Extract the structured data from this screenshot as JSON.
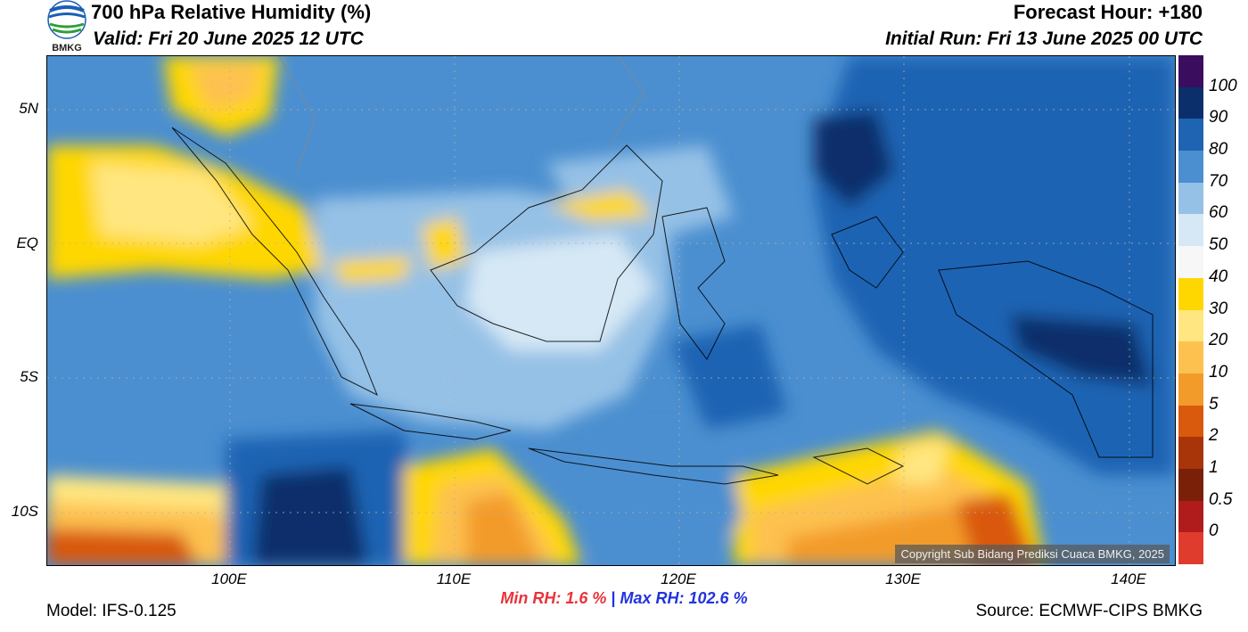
{
  "header": {
    "title": "700 hPa Relative Humidity (%)",
    "valid": "Valid: Fri 20 June 2025 12 UTC",
    "forecast_hour": "Forecast Hour: +180",
    "initial_run": "Initial Run: Fri 13 June 2025 00 UTC",
    "logo_text": "BMKG"
  },
  "map": {
    "lat_labels": [
      "5N",
      "EQ",
      "5S",
      "10S"
    ],
    "lon_labels": [
      "100E",
      "110E",
      "120E",
      "130E",
      "140E"
    ],
    "copyright": "Copyright Sub Bidang Prediksi Cuaca BMKG, 2025"
  },
  "colorbar": {
    "labels": [
      "100",
      "90",
      "80",
      "70",
      "60",
      "50",
      "40",
      "30",
      "20",
      "10",
      "5",
      "2",
      "1",
      "0.5",
      "0"
    ],
    "colors": [
      "#3a0d5e",
      "#0b2f6b",
      "#1f63b3",
      "#4b8fd0",
      "#95c1e6",
      "#d6e8f5",
      "#f7f7f7",
      "#ffd700",
      "#ffe680",
      "#fdc14f",
      "#f39b2a",
      "#d9590d",
      "#a8350a",
      "#7a1f08",
      "#b01c1c",
      "#e03c2e"
    ]
  },
  "stats": {
    "min_rh": "Min RH:   1.6 %",
    "separator": "|",
    "max_rh": "Max RH: 102.6 %"
  },
  "footer": {
    "model": "Model: IFS-0.125",
    "source": "Source: ECMWF-CIPS BMKG"
  }
}
